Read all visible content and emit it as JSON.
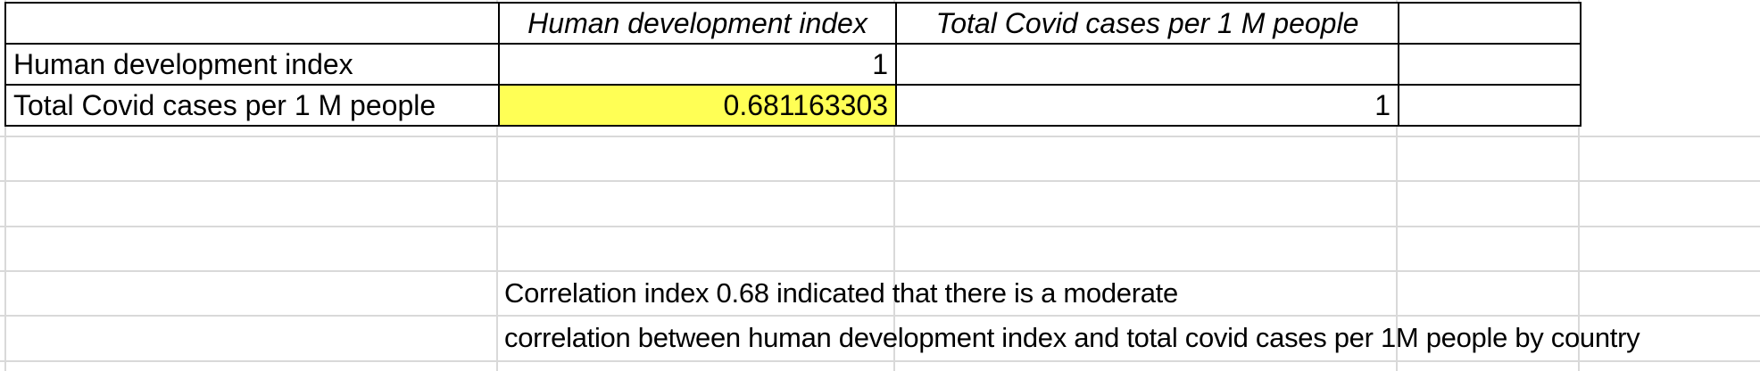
{
  "matrix": {
    "columns": [
      "Human development index",
      "Total Covid cases per 1 M people"
    ],
    "rows": [
      {
        "label": "Human development index",
        "values": [
          "1",
          ""
        ]
      },
      {
        "label": "Total Covid cases per 1 M people",
        "values": [
          "0.681163303",
          "1"
        ]
      }
    ],
    "highlight_color": "#ffff55"
  },
  "note": {
    "line1": "Correlation index 0.68 indicated that there is a moderate",
    "line2": "correlation between human development index and total covid cases per 1M people by country"
  }
}
